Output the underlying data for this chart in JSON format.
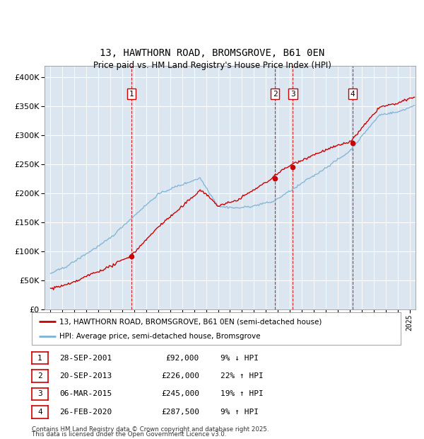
{
  "title_line1": "13, HAWTHORN ROAD, BROMSGROVE, B61 0EN",
  "title_line2": "Price paid vs. HM Land Registry's House Price Index (HPI)",
  "background_color": "#dce6f0",
  "fig_bg_color": "#ffffff",
  "red_color": "#cc0000",
  "blue_color": "#7ab3d4",
  "transactions": [
    {
      "num": 1,
      "date": "28-SEP-2001",
      "price": 92000,
      "pct": "9%",
      "dir": "↓",
      "x_year": 2001.75
    },
    {
      "num": 2,
      "date": "20-SEP-2013",
      "price": 226000,
      "pct": "22%",
      "dir": "↑",
      "x_year": 2013.75
    },
    {
      "num": 3,
      "date": "06-MAR-2015",
      "price": 245000,
      "pct": "19%",
      "dir": "↑",
      "x_year": 2015.25
    },
    {
      "num": 4,
      "date": "26-FEB-2020",
      "price": 287500,
      "pct": "9%",
      "dir": "↑",
      "x_year": 2020.25
    }
  ],
  "legend_line1": "13, HAWTHORN ROAD, BROMSGROVE, B61 0EN (semi-detached house)",
  "legend_line2": "HPI: Average price, semi-detached house, Bromsgrove",
  "footer1": "Contains HM Land Registry data © Crown copyright and database right 2025.",
  "footer2": "This data is licensed under the Open Government Licence v3.0.",
  "xlim": [
    1994.5,
    2025.5
  ],
  "ylim": [
    0,
    420000
  ],
  "yticks": [
    0,
    50000,
    100000,
    150000,
    200000,
    250000,
    300000,
    350000,
    400000
  ]
}
